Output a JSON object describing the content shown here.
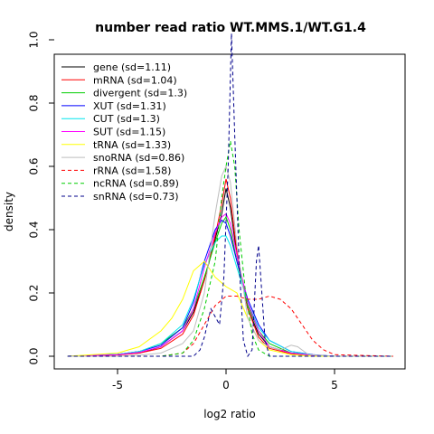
{
  "chart_data": {
    "type": "line",
    "title": "number read ratio WT.MMS.1/WT.G1.4",
    "xlabel": "log2 ratio",
    "ylabel": "density",
    "xlim": [
      -7.5,
      8
    ],
    "ylim": [
      0,
      1.07
    ],
    "x_ticks": [
      -5,
      0,
      5
    ],
    "x_tick_labels": [
      "-5",
      "0",
      "5"
    ],
    "y_ticks": [
      0,
      0.2,
      0.4,
      0.6,
      0.8,
      1.0
    ],
    "y_tick_labels": [
      "0.0",
      "0.2",
      "0.4",
      "0.6",
      "0.8",
      "1.0"
    ],
    "legend_position": "top-left",
    "series": [
      {
        "name": "gene (sd=1.11)",
        "color": "#000000",
        "dash": "solid",
        "points": [
          [
            -7.3,
            0
          ],
          [
            -5,
            0.005
          ],
          [
            -4,
            0.01
          ],
          [
            -3,
            0.03
          ],
          [
            -2,
            0.08
          ],
          [
            -1.5,
            0.14
          ],
          [
            -1,
            0.24
          ],
          [
            -0.5,
            0.37
          ],
          [
            -0.2,
            0.45
          ],
          [
            0,
            0.53
          ],
          [
            0.2,
            0.47
          ],
          [
            0.5,
            0.32
          ],
          [
            1,
            0.15
          ],
          [
            1.5,
            0.07
          ],
          [
            2,
            0.03
          ],
          [
            3,
            0.01
          ],
          [
            4,
            0.004
          ],
          [
            5,
            0
          ],
          [
            7.7,
            0
          ]
        ]
      },
      {
        "name": "mRNA (sd=1.04)",
        "color": "#ff0000",
        "dash": "solid",
        "points": [
          [
            -7.3,
            0
          ],
          [
            -5,
            0.004
          ],
          [
            -4,
            0.01
          ],
          [
            -3,
            0.025
          ],
          [
            -2,
            0.07
          ],
          [
            -1.5,
            0.13
          ],
          [
            -1,
            0.24
          ],
          [
            -0.5,
            0.38
          ],
          [
            -0.2,
            0.48
          ],
          [
            0,
            0.56
          ],
          [
            0.2,
            0.5
          ],
          [
            0.5,
            0.33
          ],
          [
            1,
            0.15
          ],
          [
            1.5,
            0.06
          ],
          [
            2,
            0.025
          ],
          [
            3,
            0.008
          ],
          [
            4,
            0.003
          ],
          [
            5,
            0
          ],
          [
            7.7,
            0
          ]
        ]
      },
      {
        "name": "divergent (sd=1.3)",
        "color": "#00cd00",
        "dash": "solid",
        "points": [
          [
            -7.3,
            0
          ],
          [
            -5,
            0.006
          ],
          [
            -4,
            0.015
          ],
          [
            -3,
            0.04
          ],
          [
            -2,
            0.09
          ],
          [
            -1.5,
            0.15
          ],
          [
            -1,
            0.25
          ],
          [
            -0.5,
            0.36
          ],
          [
            -0.2,
            0.42
          ],
          [
            0,
            0.44
          ],
          [
            0.2,
            0.4
          ],
          [
            0.5,
            0.3
          ],
          [
            1,
            0.16
          ],
          [
            1.5,
            0.08
          ],
          [
            2,
            0.04
          ],
          [
            3,
            0.01
          ],
          [
            4,
            0.004
          ],
          [
            5,
            0
          ],
          [
            7.7,
            0
          ]
        ]
      },
      {
        "name": "XUT (sd=1.31)",
        "color": "#0000ff",
        "dash": "solid",
        "points": [
          [
            -7.3,
            0
          ],
          [
            -5,
            0.006
          ],
          [
            -4,
            0.015
          ],
          [
            -3,
            0.035
          ],
          [
            -2,
            0.09
          ],
          [
            -1.5,
            0.17
          ],
          [
            -1,
            0.3
          ],
          [
            -0.5,
            0.4
          ],
          [
            -0.2,
            0.43
          ],
          [
            0,
            0.42
          ],
          [
            0.2,
            0.38
          ],
          [
            0.5,
            0.3
          ],
          [
            1,
            0.18
          ],
          [
            1.5,
            0.1
          ],
          [
            2,
            0.05
          ],
          [
            3,
            0.015
          ],
          [
            4,
            0.005
          ],
          [
            5,
            0
          ],
          [
            7.7,
            0
          ]
        ]
      },
      {
        "name": "CUT (sd=1.3)",
        "color": "#00e5ee",
        "dash": "solid",
        "points": [
          [
            -7.3,
            0
          ],
          [
            -5,
            0.006
          ],
          [
            -4,
            0.015
          ],
          [
            -3,
            0.04
          ],
          [
            -2,
            0.1
          ],
          [
            -1.5,
            0.18
          ],
          [
            -1,
            0.29
          ],
          [
            -0.5,
            0.36
          ],
          [
            -0.2,
            0.38
          ],
          [
            0,
            0.38
          ],
          [
            0.2,
            0.35
          ],
          [
            0.5,
            0.28
          ],
          [
            1,
            0.17
          ],
          [
            1.5,
            0.09
          ],
          [
            2,
            0.05
          ],
          [
            3,
            0.015
          ],
          [
            4,
            0.004
          ],
          [
            5,
            0
          ],
          [
            7.7,
            0
          ]
        ]
      },
      {
        "name": "SUT (sd=1.15)",
        "color": "#ff00ff",
        "dash": "solid",
        "points": [
          [
            -7.3,
            0
          ],
          [
            -5,
            0.005
          ],
          [
            -4,
            0.012
          ],
          [
            -3,
            0.03
          ],
          [
            -2,
            0.08
          ],
          [
            -1.5,
            0.15
          ],
          [
            -1,
            0.28
          ],
          [
            -0.5,
            0.39
          ],
          [
            -0.2,
            0.44
          ],
          [
            0,
            0.45
          ],
          [
            0.2,
            0.42
          ],
          [
            0.5,
            0.32
          ],
          [
            1,
            0.17
          ],
          [
            1.5,
            0.08
          ],
          [
            2,
            0.03
          ],
          [
            3,
            0.01
          ],
          [
            4,
            0.003
          ],
          [
            5,
            0
          ],
          [
            7.7,
            0
          ]
        ]
      },
      {
        "name": "tRNA (sd=1.33)",
        "color": "#ffff00",
        "dash": "solid",
        "points": [
          [
            -7.3,
            0
          ],
          [
            -5,
            0.01
          ],
          [
            -4,
            0.03
          ],
          [
            -3,
            0.08
          ],
          [
            -2.5,
            0.12
          ],
          [
            -2,
            0.18
          ],
          [
            -1.5,
            0.27
          ],
          [
            -1,
            0.3
          ],
          [
            -0.5,
            0.25
          ],
          [
            0,
            0.22
          ],
          [
            0.5,
            0.2
          ],
          [
            1,
            0.12
          ],
          [
            1.5,
            0.05
          ],
          [
            2,
            0.02
          ],
          [
            3,
            0.005
          ],
          [
            4,
            0
          ],
          [
            7.7,
            0
          ]
        ]
      },
      {
        "name": "snoRNA (sd=0.86)",
        "color": "#bebebe",
        "dash": "solid",
        "points": [
          [
            -7.3,
            0
          ],
          [
            -5,
            0
          ],
          [
            -4,
            0.003
          ],
          [
            -3,
            0.01
          ],
          [
            -2,
            0.04
          ],
          [
            -1.5,
            0.08
          ],
          [
            -1,
            0.2
          ],
          [
            -0.5,
            0.45
          ],
          [
            -0.2,
            0.57
          ],
          [
            0,
            0.6
          ],
          [
            0.2,
            0.55
          ],
          [
            0.5,
            0.35
          ],
          [
            1,
            0.12
          ],
          [
            1.5,
            0.05
          ],
          [
            2,
            0.03
          ],
          [
            2.5,
            0.02
          ],
          [
            3,
            0.035
          ],
          [
            3.3,
            0.03
          ],
          [
            3.8,
            0.005
          ],
          [
            5,
            0
          ],
          [
            7.7,
            0
          ]
        ]
      },
      {
        "name": "rRNA (sd=1.58)",
        "color": "#ff0000",
        "dash": "dashed",
        "points": [
          [
            -7.3,
            0
          ],
          [
            -3,
            0
          ],
          [
            -2,
            0.01
          ],
          [
            -1.5,
            0.04
          ],
          [
            -1,
            0.1
          ],
          [
            -0.5,
            0.16
          ],
          [
            0,
            0.19
          ],
          [
            0.5,
            0.19
          ],
          [
            1,
            0.18
          ],
          [
            1.5,
            0.18
          ],
          [
            2,
            0.19
          ],
          [
            2.5,
            0.18
          ],
          [
            3,
            0.15
          ],
          [
            3.5,
            0.1
          ],
          [
            4,
            0.05
          ],
          [
            4.5,
            0.02
          ],
          [
            5,
            0.005
          ],
          [
            7.7,
            0
          ]
        ]
      },
      {
        "name": "ncRNA (sd=0.89)",
        "color": "#00cd00",
        "dash": "dashed",
        "points": [
          [
            -7.3,
            0
          ],
          [
            -3,
            0
          ],
          [
            -2,
            0.01
          ],
          [
            -1.5,
            0.05
          ],
          [
            -1,
            0.15
          ],
          [
            -0.5,
            0.3
          ],
          [
            -0.2,
            0.5
          ],
          [
            0,
            0.6
          ],
          [
            0.2,
            0.68
          ],
          [
            0.4,
            0.6
          ],
          [
            0.6,
            0.4
          ],
          [
            0.9,
            0.2
          ],
          [
            1.2,
            0.07
          ],
          [
            1.5,
            0.02
          ],
          [
            2,
            0
          ],
          [
            7.7,
            0
          ]
        ]
      },
      {
        "name": "snRNA (sd=0.73)",
        "color": "#00008b",
        "dash": "dashed",
        "points": [
          [
            -7.3,
            0
          ],
          [
            -1.5,
            0
          ],
          [
            -1.2,
            0.02
          ],
          [
            -1,
            0.06
          ],
          [
            -0.7,
            0.15
          ],
          [
            -0.3,
            0.1
          ],
          [
            -0.1,
            0.25
          ],
          [
            0.1,
            0.6
          ],
          [
            0.25,
            1.02
          ],
          [
            0.4,
            0.7
          ],
          [
            0.6,
            0.3
          ],
          [
            0.8,
            0.05
          ],
          [
            1,
            0
          ],
          [
            1.2,
            0.02
          ],
          [
            1.4,
            0.3
          ],
          [
            1.5,
            0.35
          ],
          [
            1.6,
            0.25
          ],
          [
            1.8,
            0.05
          ],
          [
            2,
            0
          ],
          [
            7.7,
            0
          ]
        ]
      }
    ]
  }
}
